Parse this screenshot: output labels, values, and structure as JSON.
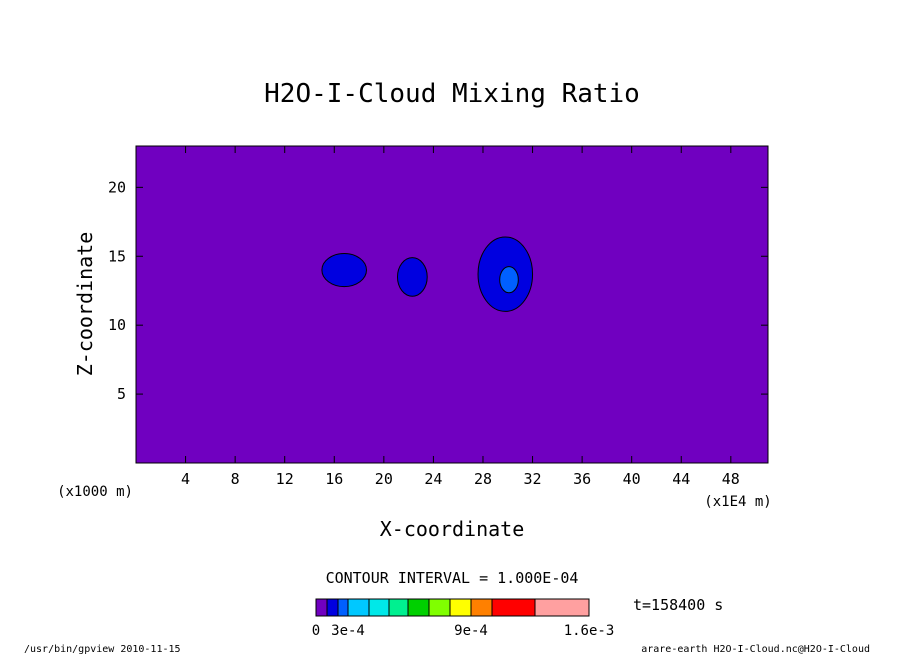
{
  "chart_data": {
    "type": "heatmap",
    "title": "H2O-I-Cloud Mixing Ratio",
    "xlabel": "X-coordinate",
    "ylabel": "Z-coordinate",
    "x_unit": "(x1E4 m)",
    "y_unit": "(x1000 m)",
    "xlim": [
      0,
      51
    ],
    "ylim": [
      0,
      23
    ],
    "x_ticks": [
      4,
      8,
      12,
      16,
      20,
      24,
      28,
      32,
      36,
      40,
      44,
      48
    ],
    "y_ticks": [
      5,
      10,
      15,
      20
    ],
    "background_color": "#7000c0",
    "contour_interval_text": "CONTOUR INTERVAL = 1.000E-04",
    "time_text": "t=158400 s",
    "footer_left": "/usr/bin/gpview  2010-11-15",
    "footer_right": "arare-earth_H2O-I-Cloud.nc@H2O-I-Cloud",
    "colorbar": {
      "colors": [
        "#7000c0",
        "#0000e0",
        "#0060ff",
        "#00c8ff",
        "#00e8e8",
        "#00f090",
        "#00d000",
        "#80ff00",
        "#ffff00",
        "#ff8000",
        "#ff0000",
        "#ffa0a0"
      ],
      "labels": [
        "0",
        "3e-4",
        "9e-4",
        "1.6e-3"
      ],
      "label_levels": [
        0,
        3,
        9,
        16
      ]
    },
    "features": [
      {
        "name": "cloud-blob-1",
        "level": 1,
        "center": [
          16.8,
          14.0
        ],
        "radius": [
          1.8,
          1.2
        ]
      },
      {
        "name": "cloud-blob-2",
        "level": 1,
        "center": [
          22.3,
          13.5
        ],
        "radius": [
          1.2,
          1.4
        ]
      },
      {
        "name": "cloud-blob-3",
        "level": 1,
        "center": [
          29.8,
          13.7
        ],
        "radius": [
          2.2,
          2.7
        ]
      },
      {
        "name": "cloud-core-3",
        "level": 2,
        "center": [
          30.1,
          13.3
        ],
        "radius": [
          0.75,
          0.95
        ]
      }
    ]
  }
}
